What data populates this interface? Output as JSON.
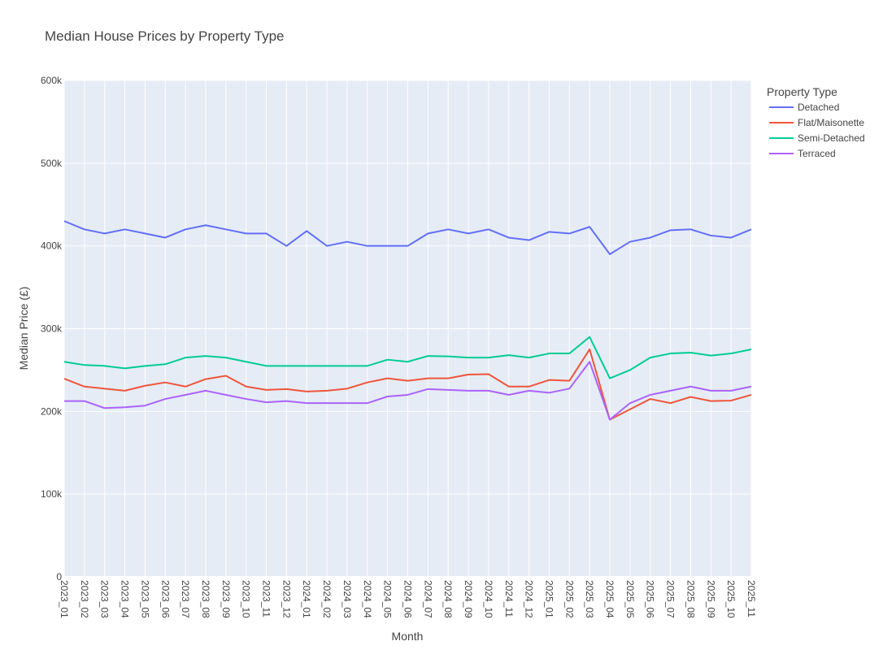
{
  "chart_data": {
    "type": "line",
    "title": "Median House Prices by Property Type",
    "xlabel": "Month",
    "ylabel": "Median Price (£)",
    "ylim": [
      0,
      600000
    ],
    "yticks": [
      0,
      100000,
      200000,
      300000,
      400000,
      500000,
      600000
    ],
    "ytick_labels": [
      "0",
      "100k",
      "200k",
      "300k",
      "400k",
      "500k",
      "600k"
    ],
    "legend_title": "Property Type",
    "legend_position": "top-right",
    "categories": [
      "2023_01",
      "2023_02",
      "2023_03",
      "2023_04",
      "2023_05",
      "2023_06",
      "2023_07",
      "2023_08",
      "2023_09",
      "2023_10",
      "2023_11",
      "2023_12",
      "2024_01",
      "2024_02",
      "2024_03",
      "2024_04",
      "2024_05",
      "2024_06",
      "2024_07",
      "2024_08",
      "2024_09",
      "2024_10",
      "2024_11",
      "2024_12",
      "2025_01",
      "2025_02",
      "2025_03",
      "2025_04",
      "2025_05",
      "2025_06",
      "2025_07",
      "2025_08",
      "2025_09",
      "2025_10",
      "2025_11"
    ],
    "series": [
      {
        "name": "Detached",
        "color": "#636efa",
        "values": [
          430000,
          420000,
          415000,
          420000,
          415000,
          410000,
          420000,
          425000,
          420000,
          415000,
          415000,
          400000,
          418000,
          400000,
          405000,
          400000,
          400000,
          400000,
          415000,
          420000,
          415000,
          420000,
          410000,
          407000,
          417000,
          415000,
          423000,
          390000,
          405000,
          410000,
          419000,
          420000,
          412500,
          410000,
          420000
        ]
      },
      {
        "name": "Flat/Maisonette",
        "color": "#ef553b",
        "values": [
          239500,
          230000,
          227500,
          225000,
          231000,
          235000,
          230000,
          239000,
          243000,
          230000,
          226000,
          227000,
          224000,
          225000,
          227500,
          235000,
          240000,
          237000,
          240000,
          240000,
          244500,
          245000,
          230000,
          230000,
          238000,
          237000,
          275000,
          190000,
          202500,
          215000,
          210000,
          217500,
          212500,
          213000,
          220000
        ]
      },
      {
        "name": "Semi-Detached",
        "color": "#00cc96",
        "values": [
          260000,
          256000,
          255000,
          252000,
          255000,
          257000,
          265000,
          267000,
          265000,
          260000,
          255000,
          255000,
          255000,
          255000,
          255000,
          255000,
          262500,
          260000,
          267000,
          266500,
          265000,
          265000,
          268000,
          265000,
          270000,
          270000,
          290000,
          240000,
          250000,
          265000,
          270000,
          271000,
          267500,
          270000,
          275000
        ]
      },
      {
        "name": "Terraced",
        "color": "#ab63fa",
        "values": [
          212500,
          212500,
          204000,
          205000,
          207000,
          215000,
          220000,
          225000,
          220000,
          215000,
          211000,
          212500,
          210000,
          210000,
          210000,
          210000,
          218000,
          220000,
          227000,
          226000,
          225000,
          225000,
          220000,
          225000,
          222500,
          227500,
          260000,
          190000,
          210000,
          220000,
          225000,
          230000,
          225000,
          225000,
          230000
        ]
      }
    ]
  }
}
